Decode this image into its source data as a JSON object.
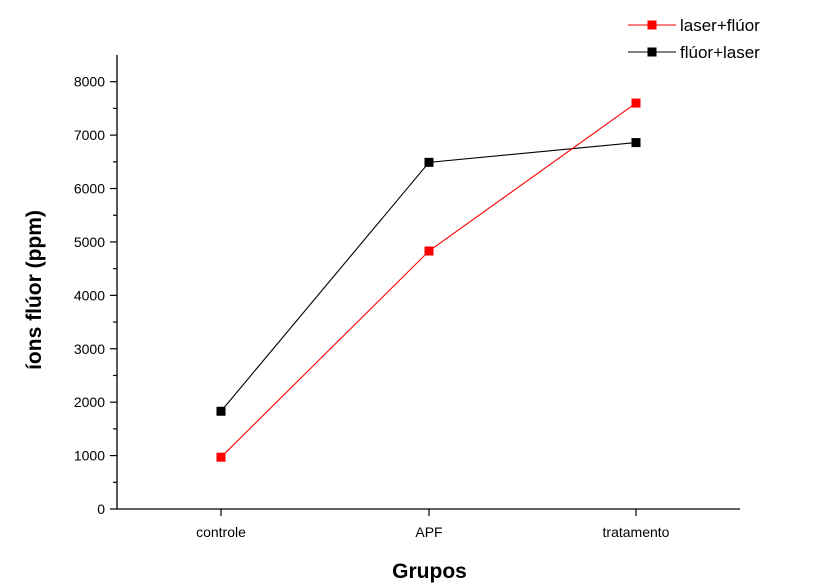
{
  "chart_data": {
    "type": "line",
    "title": "",
    "xlabel": "Grupos",
    "ylabel": "íons flúor (ppm)",
    "categories": [
      "controle",
      "APF",
      "tratamento"
    ],
    "ylim": [
      0,
      8500
    ],
    "yticks": [
      0,
      1000,
      2000,
      3000,
      4000,
      5000,
      6000,
      7000,
      8000
    ],
    "grid": false,
    "legend_position": "top-right",
    "series": [
      {
        "name": "laser+flúor",
        "color": "#ff0000",
        "values": [
          970,
          4830,
          7600
        ]
      },
      {
        "name": "flúor+laser",
        "color": "#000000",
        "values": [
          1830,
          6490,
          6860
        ]
      }
    ]
  }
}
